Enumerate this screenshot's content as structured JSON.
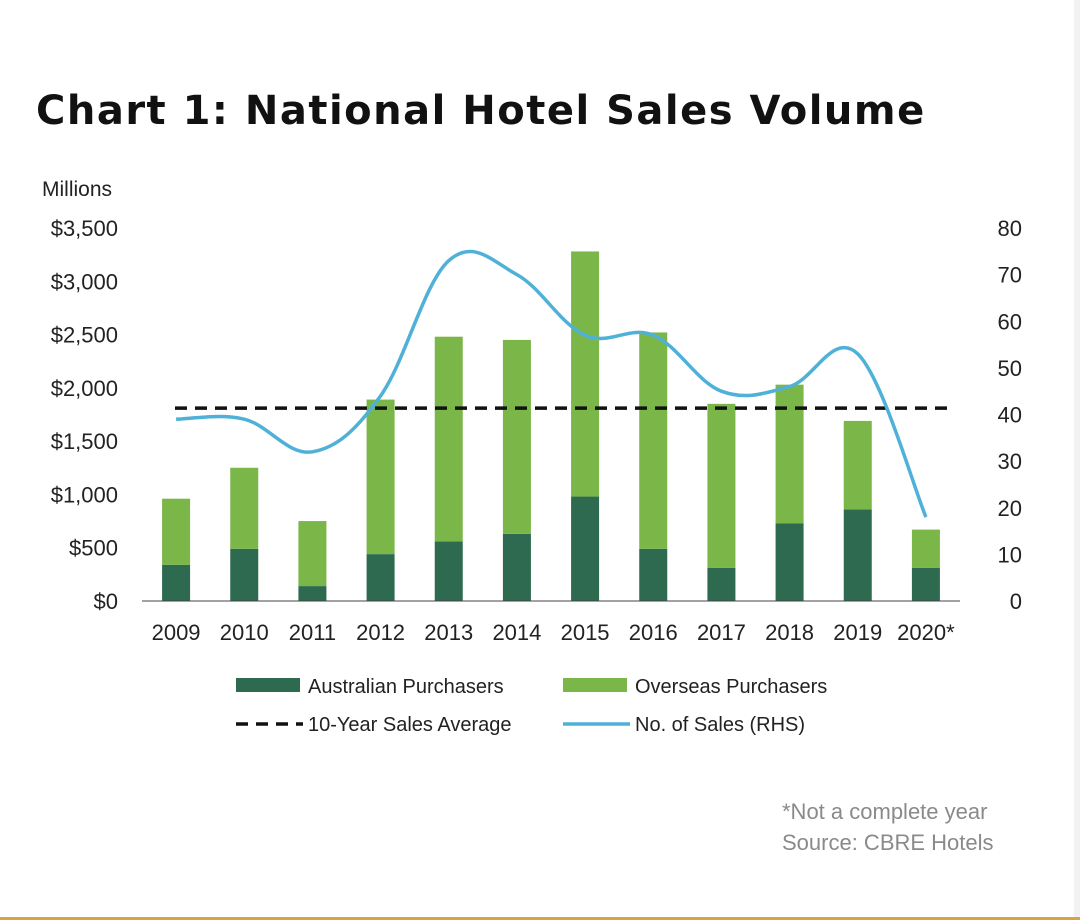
{
  "page": {
    "title": "Chart 1: National Hotel Sales Volume",
    "note": "*Not a complete year",
    "source": "Source: CBRE Hotels"
  },
  "colors": {
    "australian": "#2d6a4f",
    "overseas": "#7ab648",
    "average": "#111111",
    "sales": "#4fb0d8"
  },
  "chart_data": {
    "type": "bar",
    "stacked": true,
    "ylabel": "Millions",
    "ylim": [
      0,
      3500
    ],
    "yticks": [
      "$0",
      "$500",
      "$1,000",
      "$1,500",
      "$2,000",
      "$2,500",
      "$3,000",
      "$3,500"
    ],
    "ytick_values": [
      0,
      500,
      1000,
      1500,
      2000,
      2500,
      3000,
      3500
    ],
    "y2lim": [
      0,
      80
    ],
    "y2ticks": [
      "0",
      "10",
      "20",
      "30",
      "40",
      "50",
      "60",
      "70",
      "80"
    ],
    "y2tick_values": [
      0,
      10,
      20,
      30,
      40,
      50,
      60,
      70,
      80
    ],
    "categories": [
      "2009",
      "2010",
      "2011",
      "2012",
      "2013",
      "2014",
      "2015",
      "2016",
      "2017",
      "2018",
      "2019",
      "2020*"
    ],
    "series": [
      {
        "name": "Australian Purchasers",
        "type": "bar",
        "axis": "left",
        "values": [
          340,
          490,
          140,
          440,
          560,
          630,
          980,
          490,
          310,
          730,
          860,
          310
        ]
      },
      {
        "name": "Overseas Purchasers",
        "type": "bar",
        "axis": "left",
        "values": [
          620,
          760,
          610,
          1450,
          1920,
          1820,
          2300,
          2030,
          1540,
          1300,
          830,
          360
        ]
      },
      {
        "name": "10-Year Sales Average",
        "type": "line",
        "style": "dashed",
        "axis": "left",
        "values": [
          1810,
          1810,
          1810,
          1810,
          1810,
          1810,
          1810,
          1810,
          1810,
          1810,
          1810,
          1810
        ]
      },
      {
        "name": "No. of Sales (RHS)",
        "type": "line",
        "axis": "right",
        "values": [
          39,
          39,
          32,
          44,
          73,
          70,
          57,
          57,
          45,
          46,
          53,
          18
        ]
      }
    ],
    "legend_position": "bottom",
    "grid": false
  }
}
